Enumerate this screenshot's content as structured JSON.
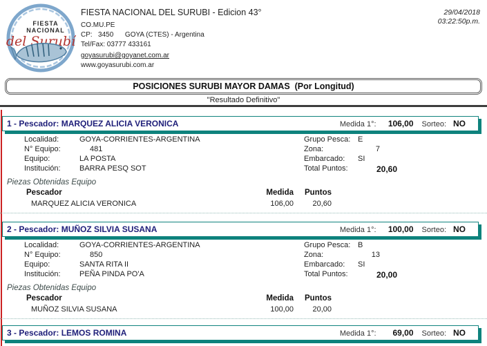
{
  "meta": {
    "date": "29/04/2018",
    "time": "03:22:50p.m."
  },
  "header": {
    "org_title": "FIESTA NACIONAL DEL SURUBI - Edicion 43°",
    "org_line1": "CO.MU.PE",
    "org_line2": "CP:   3450      GOYA (CTES) - Argentina",
    "org_line3": "Tel/Fax: 03777 433161",
    "email": "goyasurubi@goyanet.com.ar",
    "website": "www.goyasurubi.com.ar",
    "logo": {
      "word1": "FIESTA",
      "word2": "NACIONAL",
      "script": "del Surubí"
    }
  },
  "report": {
    "title": "POSICIONES SURUBI MAYOR DAMAS  (Por Longitud)",
    "subtitle": "\"Resultado Definitivo\""
  },
  "labels": {
    "pescador_prefix": "Pescador:",
    "medida1": "Medida 1°:",
    "sorteo": "Sorteo:",
    "localidad": "Localidad:",
    "n_equipo": "N° Equipo:",
    "equipo": "Equipo:",
    "institucion": "Institución:",
    "grupo": "Grupo Pesca:",
    "zona": "Zona:",
    "embarcado": "Embarcado:",
    "total": "Total Puntos:",
    "piezas": "Piezas Obtenidas Equipo",
    "col_pescador": "Pescador",
    "col_medida": "Medida",
    "col_puntos": "Puntos"
  },
  "records": [
    {
      "position": "1",
      "name": "MARQUEZ ALICIA VERONICA",
      "medida1": "106,00",
      "sorteo": "NO",
      "localidad": "GOYA-CORRIENTES-ARGENTINA",
      "n_equipo": "481",
      "equipo": "LA POSTA",
      "institucion": "BARRA PESQ SOT",
      "grupo_pesca": "E",
      "zona": "7",
      "embarcado": "SI",
      "total_puntos": "20,60",
      "piezas": [
        {
          "pescador": "MARQUEZ ALICIA VERONICA",
          "medida": "106,00",
          "puntos": "20,60"
        }
      ]
    },
    {
      "position": "2",
      "name": "MUÑOZ SILVIA SUSANA",
      "medida1": "100,00",
      "sorteo": "NO",
      "localidad": "GOYA-CORRIENTES-ARGENTINA",
      "n_equipo": "850",
      "equipo": "SANTA RITA II",
      "institucion": "PEÑA PINDA PO'A",
      "grupo_pesca": "B",
      "zona": "13",
      "embarcado": "SI",
      "total_puntos": "20,00",
      "piezas": [
        {
          "pescador": "MUÑOZ SILVIA SUSANA",
          "medida": "100,00",
          "puntos": "20,00"
        }
      ]
    },
    {
      "position": "3",
      "name": "LEMOS ROMINA",
      "medida1": "69,00",
      "sorteo": "NO"
    }
  ],
  "colors": {
    "teal_accent": "#0e827d",
    "navy_heading": "#20207a",
    "red_margin_line": "#cc2222",
    "rule_dark": "#3d3d3d",
    "logo_red": "#b23430",
    "logo_blue": "#7ea7cc"
  }
}
